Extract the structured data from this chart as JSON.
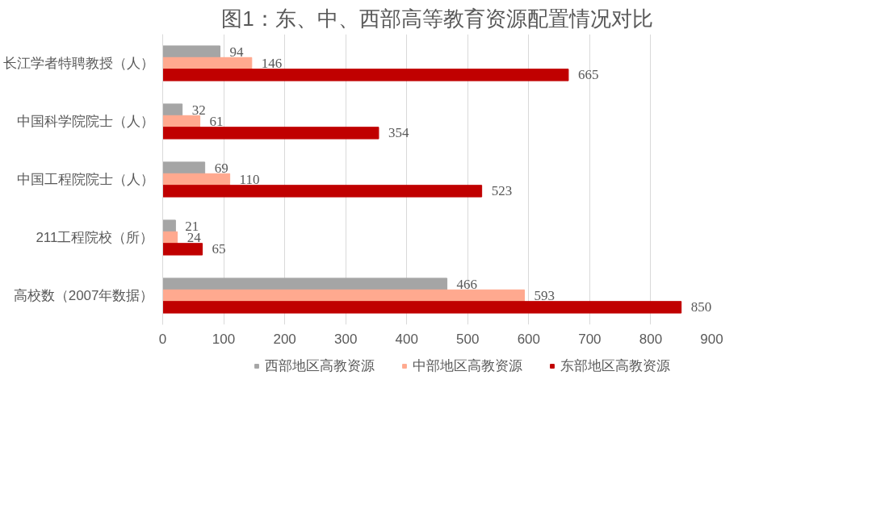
{
  "chart_data": {
    "type": "bar",
    "orientation": "horizontal",
    "title": "图1：东、中、西部高等教育资源配置情况对比",
    "categories": [
      "长江学者特聘教授（人）",
      "中国科学院院士（人）",
      "中国工程院院士（人）",
      "211工程院校（所）",
      "高校数（2007年数据）"
    ],
    "series": [
      {
        "name": "西部地区高教资源",
        "color": "#a5a5a5",
        "values": [
          94,
          32,
          69,
          21,
          466
        ]
      },
      {
        "name": "中部地区高教资源",
        "color": "#ffa98f",
        "values": [
          146,
          61,
          110,
          24,
          593
        ]
      },
      {
        "name": "东部地区高教资源",
        "color": "#c00000",
        "values": [
          665,
          354,
          523,
          65,
          850
        ]
      }
    ],
    "xlim": [
      0,
      900
    ],
    "xticks": [
      0,
      100,
      200,
      300,
      400,
      500,
      600,
      700,
      800,
      900
    ],
    "grid": "x",
    "legend": "bottom",
    "data_labels": true
  }
}
